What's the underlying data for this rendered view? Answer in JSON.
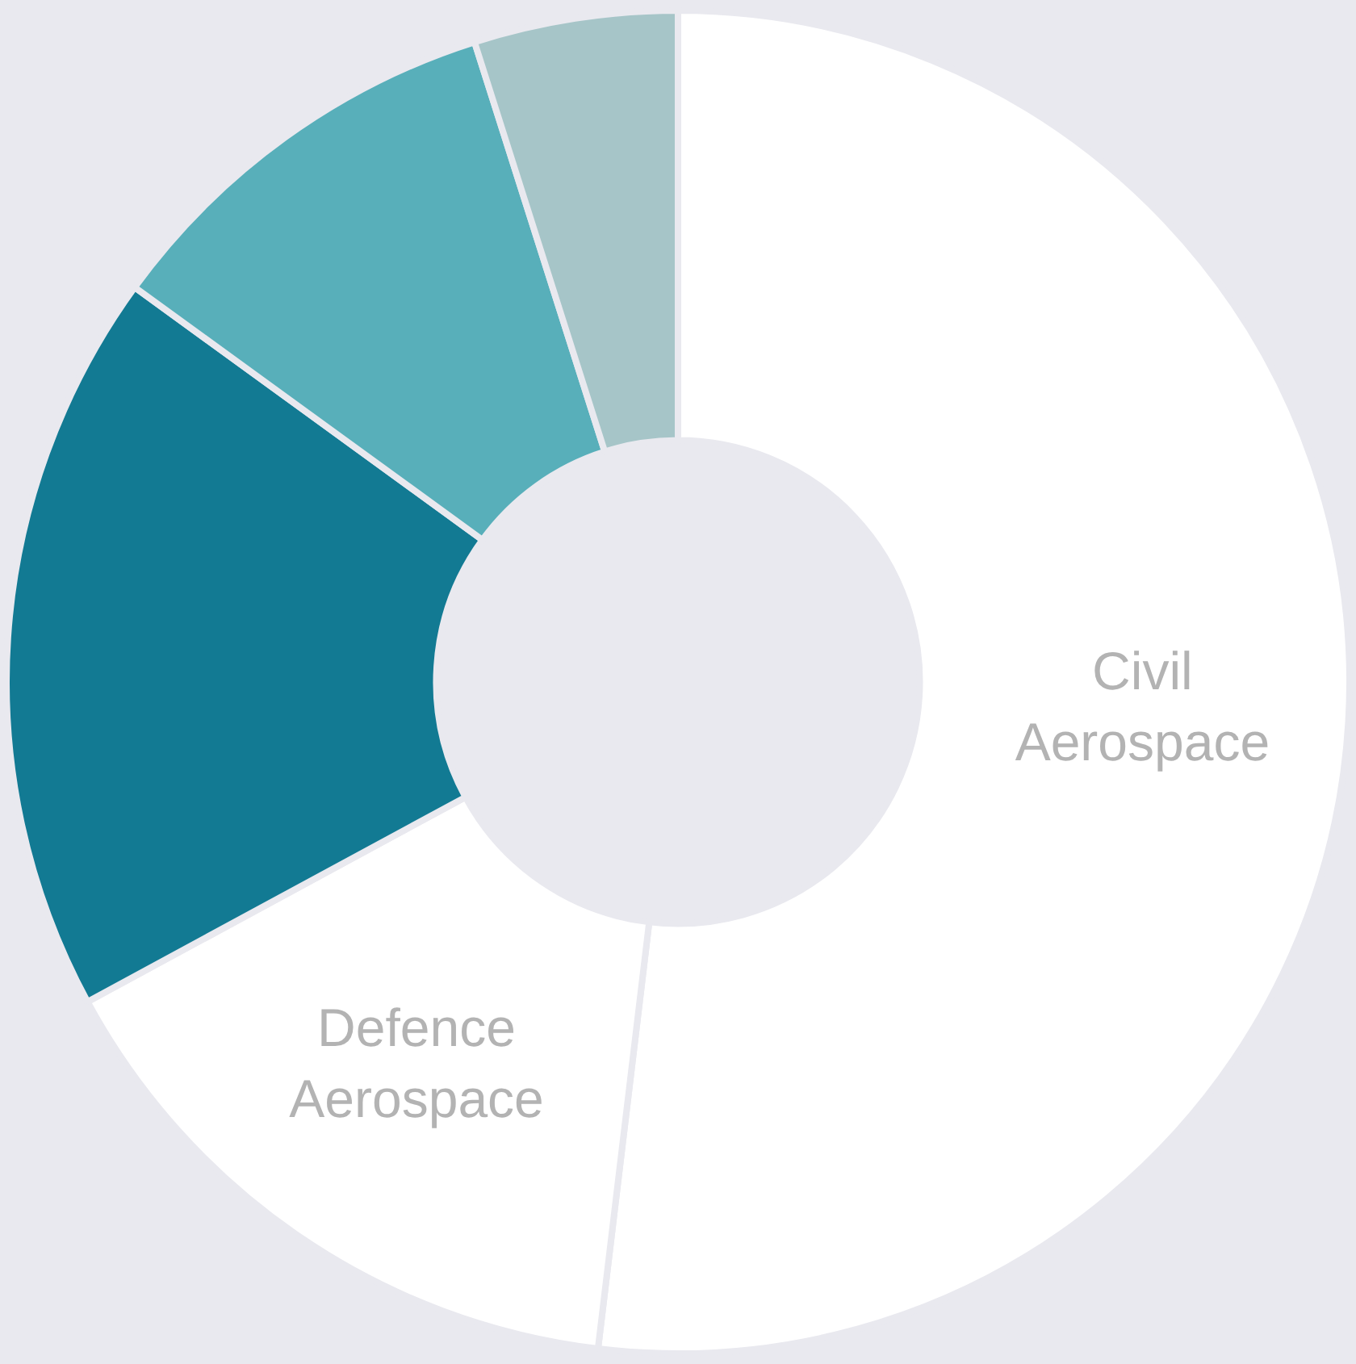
{
  "chart_data": {
    "type": "donut",
    "categories": [
      "Civil Aerospace",
      "Defence Aerospace",
      null,
      null,
      null
    ],
    "values": [
      51.9,
      15.2,
      17.9,
      10.1,
      4.9
    ],
    "colors": [
      "#ffffff",
      "#ffffff",
      "#127a93",
      "#58afba",
      "#a6c5c8"
    ],
    "legend": false
  }
}
